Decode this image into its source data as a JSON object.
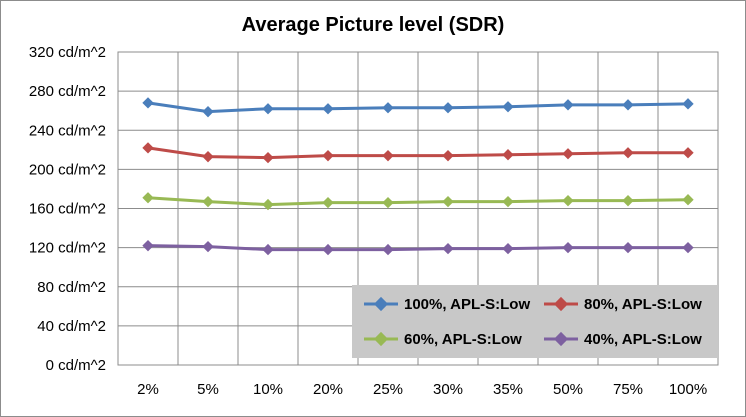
{
  "chart_data": {
    "type": "line",
    "title": "Average Picture level (SDR)",
    "xlabel": "",
    "ylabel": "",
    "categories": [
      "2%",
      "5%",
      "10%",
      "20%",
      "25%",
      "30%",
      "35%",
      "50%",
      "75%",
      "100%"
    ],
    "y_tick_labels": [
      "0 cd/m^2",
      "40 cd/m^2",
      "80 cd/m^2",
      "120 cd/m^2",
      "160 cd/m^2",
      "200 cd/m^2",
      "240 cd/m^2",
      "280 cd/m^2",
      "320 cd/m^2"
    ],
    "ylim": [
      0,
      320
    ],
    "y_step": 40,
    "grid": true,
    "legend_position": "bottom-right",
    "series": [
      {
        "name": "100%, APL-S:Low",
        "color": "#4a7ebb",
        "values": [
          268,
          259,
          262,
          262,
          263,
          263,
          264,
          266,
          266,
          267
        ]
      },
      {
        "name": "80%, APL-S:Low",
        "color": "#be4b48",
        "values": [
          222,
          213,
          212,
          214,
          214,
          214,
          215,
          216,
          217,
          217
        ]
      },
      {
        "name": "60%, APL-S:Low",
        "color": "#98b954",
        "values": [
          171,
          167,
          164,
          166,
          166,
          167,
          167,
          168,
          168,
          169
        ]
      },
      {
        "name": "40%, APL-S:Low",
        "color": "#7d60a0",
        "values": [
          122,
          121,
          118,
          118,
          118,
          119,
          119,
          120,
          120,
          120
        ]
      }
    ]
  }
}
